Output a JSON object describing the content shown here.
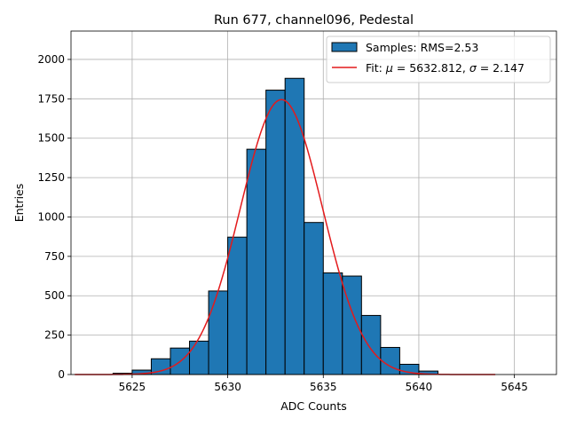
{
  "chart_data": {
    "type": "bar",
    "title": "Run 677, channel096, Pedestal",
    "xlabel": "ADC Counts",
    "ylabel": "Entries",
    "xlim": [
      5621.8,
      5647.2
    ],
    "ylim": [
      0,
      2180
    ],
    "xticks": [
      5625,
      5630,
      5635,
      5640,
      5645
    ],
    "yticks": [
      0,
      250,
      500,
      750,
      1000,
      1250,
      1500,
      1750,
      2000
    ],
    "grid": true,
    "legend_position": "top-right",
    "bin_width": 1,
    "bins": [
      {
        "left": 5624,
        "count": 8
      },
      {
        "left": 5625,
        "count": 28
      },
      {
        "left": 5626,
        "count": 100
      },
      {
        "left": 5627,
        "count": 168
      },
      {
        "left": 5628,
        "count": 212
      },
      {
        "left": 5629,
        "count": 530
      },
      {
        "left": 5630,
        "count": 872
      },
      {
        "left": 5631,
        "count": 1430
      },
      {
        "left": 5632,
        "count": 1805
      },
      {
        "left": 5633,
        "count": 1880
      },
      {
        "left": 5634,
        "count": 965
      },
      {
        "left": 5635,
        "count": 645
      },
      {
        "left": 5636,
        "count": 625
      },
      {
        "left": 5637,
        "count": 375
      },
      {
        "left": 5638,
        "count": 172
      },
      {
        "left": 5639,
        "count": 65
      },
      {
        "left": 5640,
        "count": 22
      }
    ],
    "fit": {
      "mu": 5632.812,
      "sigma": 2.147,
      "amplitude": 1745,
      "x_range": [
        5622,
        5644
      ]
    },
    "legend": [
      {
        "prefix": "Samples: RMS=2.53",
        "color": "#1f77b4",
        "kind": "patch"
      },
      {
        "prefix": "Fit: ",
        "mu_label": "μ",
        "mu_text": " = 5632.812, ",
        "sigma_label": "σ",
        "sigma_text": " = 2.147",
        "color": "#e31a1c",
        "kind": "line"
      }
    ],
    "colors": {
      "bar_fill": "#1f77b4",
      "bar_edge": "#000000",
      "fit_line": "#e31a1c",
      "grid": "#b0b0b0"
    }
  }
}
